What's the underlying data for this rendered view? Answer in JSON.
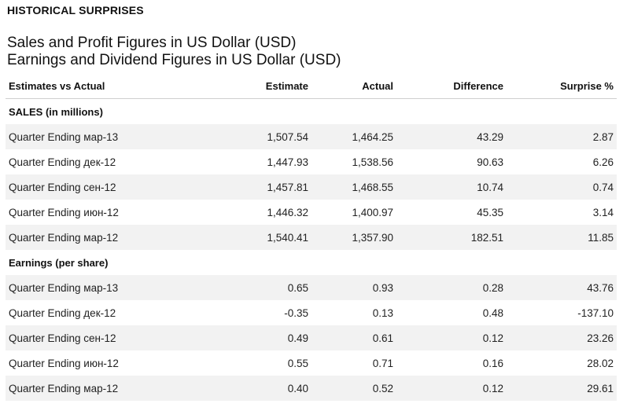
{
  "section_title": "HISTORICAL SURPRISES",
  "subtitles": [
    "Sales and Profit Figures in US Dollar (USD)",
    "Earnings and Dividend Figures in US Dollar (USD)"
  ],
  "columns": [
    "Estimates vs Actual",
    "Estimate",
    "Actual",
    "Difference",
    "Surprise %"
  ],
  "groups": [
    {
      "label": "SALES (in millions)",
      "rows": [
        {
          "period": "Quarter Ending мар-13",
          "estimate": "1,507.54",
          "actual": "1,464.25",
          "difference": "43.29",
          "surprise": "2.87"
        },
        {
          "period": "Quarter Ending дек-12",
          "estimate": "1,447.93",
          "actual": "1,538.56",
          "difference": "90.63",
          "surprise": "6.26"
        },
        {
          "period": "Quarter Ending сен-12",
          "estimate": "1,457.81",
          "actual": "1,468.55",
          "difference": "10.74",
          "surprise": "0.74"
        },
        {
          "period": "Quarter Ending июн-12",
          "estimate": "1,446.32",
          "actual": "1,400.97",
          "difference": "45.35",
          "surprise": "3.14"
        },
        {
          "period": "Quarter Ending мар-12",
          "estimate": "1,540.41",
          "actual": "1,357.90",
          "difference": "182.51",
          "surprise": "11.85"
        }
      ]
    },
    {
      "label": "Earnings (per share)",
      "rows": [
        {
          "period": "Quarter Ending мар-13",
          "estimate": "0.65",
          "actual": "0.93",
          "difference": "0.28",
          "surprise": "43.76"
        },
        {
          "period": "Quarter Ending дек-12",
          "estimate": "-0.35",
          "actual": "0.13",
          "difference": "0.48",
          "surprise": "-137.10"
        },
        {
          "period": "Quarter Ending сен-12",
          "estimate": "0.49",
          "actual": "0.61",
          "difference": "0.12",
          "surprise": "23.26"
        },
        {
          "period": "Quarter Ending июн-12",
          "estimate": "0.55",
          "actual": "0.71",
          "difference": "0.16",
          "surprise": "28.02"
        },
        {
          "period": "Quarter Ending мар-12",
          "estimate": "0.40",
          "actual": "0.52",
          "difference": "0.12",
          "surprise": "29.61"
        }
      ]
    }
  ]
}
